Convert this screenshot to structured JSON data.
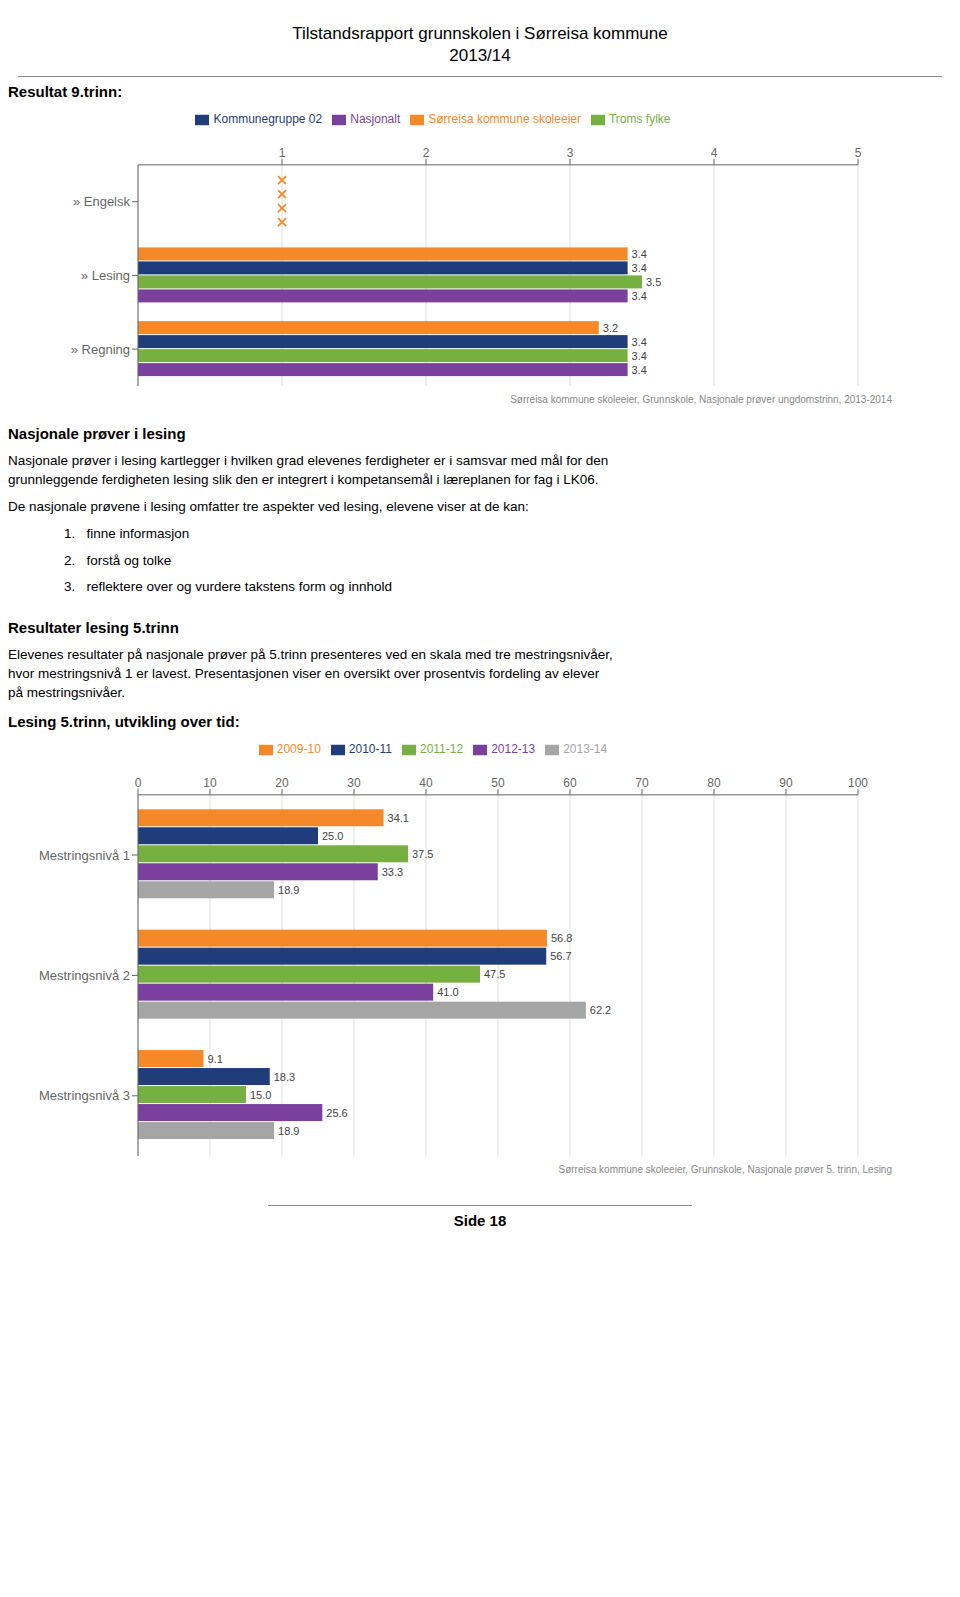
{
  "title": "Tilstandsrapport grunnskolen i Sørreisa kommune",
  "subtitle": "2013/14",
  "annotations": [
    "Nasjonale prøver i lesing",
    "Nasjonale prøver i lesing kartlegger i hvilken grad elevenes ferdigheter er i samsvar med mål for den\ngrunnleggende ferdigheten lesing slik den er integrert i kompetansemål i læreplanen for fag i LK06.",
    "De nasjonale prøvene i lesing omfatter tre aspekter ved lesing, elevene viser at de kan:",
    "1.   finne informasjon",
    "2.   forstå og tolke",
    "3.   reflektere over og vurdere takstens form og innhold",
    "Resultater lesing 5.trinn",
    "Elevenes resultater på nasjonale prøver på 5.trinn presenteres ved en skala med tre mestringsnivåer,\nhvor mestringsnivå 1 er lavest. Presentasjonen viser en oversikt over prosentvis fordeling av elever\npå mestringsnivåer.",
    "Side 18"
  ],
  "chart_data": [
    {
      "type": "bar",
      "orientation": "horizontal",
      "title": "Resultat 9.trinn:",
      "categories": [
        "» Regning",
        "» Lesing",
        "» Engelsk"
      ],
      "series": [
        {
          "name": "Sørreisa kommune skoleeier",
          "color": "#f5892a",
          "values": [
            3.2,
            3.4,
            null
          ]
        },
        {
          "name": "Kommunegruppe 02",
          "color": "#1f3d7a",
          "values": [
            3.4,
            3.4,
            null
          ]
        },
        {
          "name": "Troms fylke",
          "color": "#76b041",
          "values": [
            3.4,
            3.5,
            null
          ]
        },
        {
          "name": "Nasjonalt",
          "color": "#7b3f9e",
          "values": [
            3.4,
            3.4,
            null
          ]
        }
      ],
      "markers": {
        "type": "scatter",
        "marker": "x",
        "color": "#f5892a",
        "values": [
          null,
          null,
          1
        ]
      },
      "xlim": [
        0,
        5
      ],
      "xticks": [
        1,
        2,
        3,
        4,
        5
      ],
      "grid": true,
      "legend": "top",
      "data_labels": true,
      "annotations": [
        "Sørreisa kommune skoleeier, Grunnskole, Nasjonale prøver ungdomstrinn, 2013-2014"
      ]
    },
    {
      "type": "bar",
      "orientation": "horizontal",
      "title": "Lesing 5.trinn, utvikling over tid:",
      "categories": [
        "Mestringsnivå 1",
        "Mestringsnivå 2",
        "Mestringsnivå 3"
      ],
      "series": [
        {
          "name": "2009-10",
          "color": "#f5892a",
          "values": [
            34.1,
            56.8,
            9.1
          ],
          "value_labels": [
            "34.1",
            "56.8",
            "9.1"
          ]
        },
        {
          "name": "2010-11",
          "color": "#1f3d7a",
          "values": [
            25.0,
            56.7,
            18.3
          ],
          "value_labels": [
            "25.0",
            "56.7",
            "18.3"
          ]
        },
        {
          "name": "2011-12",
          "color": "#76b041",
          "values": [
            37.5,
            47.5,
            15.0
          ],
          "value_labels": [
            "37.5",
            "47.5",
            "15.0"
          ]
        },
        {
          "name": "2012-13",
          "color": "#7b3f9e",
          "values": [
            33.3,
            41.0,
            25.6
          ],
          "value_labels": [
            "33.3",
            "41.0",
            "25.6"
          ]
        },
        {
          "name": "2013-14",
          "color": "#a5a5a5",
          "values": [
            18.9,
            62.2,
            18.9
          ],
          "value_labels": [
            "18.9",
            "62.2",
            "18.9"
          ]
        }
      ],
      "xlim": [
        0,
        100
      ],
      "xticks": [
        0,
        10,
        20,
        30,
        40,
        50,
        60,
        70,
        80,
        90,
        100
      ],
      "grid": true,
      "legend": "top",
      "data_labels": true,
      "annotations": [
        "Sørreisa kommune skoleeier, Grunnskole, Nasjonale prøver 5. trinn, Lesing"
      ]
    }
  ]
}
